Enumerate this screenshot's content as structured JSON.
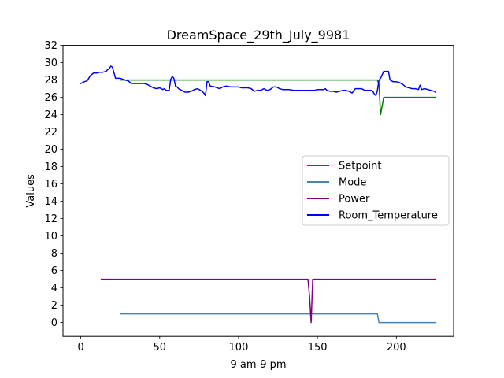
{
  "chart_data": {
    "type": "line",
    "title": "DreamSpace_29th_July_9981",
    "xlabel": "9 am-9 pm",
    "ylabel": "Values",
    "xlim": [
      -11.3,
      236.3
    ],
    "ylim": [
      -1.6,
      32
    ],
    "xticks": [
      0,
      50,
      100,
      150,
      200
    ],
    "yticks": [
      0,
      2,
      4,
      6,
      8,
      10,
      12,
      14,
      16,
      18,
      20,
      22,
      24,
      26,
      28,
      30,
      32
    ],
    "grid": false,
    "legend_position": "center-right",
    "series": [
      {
        "name": "Setpoint",
        "color": "#008000",
        "x": [
          25,
          30,
          60,
          100,
          150,
          188,
          189,
          190,
          191,
          192,
          200,
          225
        ],
        "y": [
          28,
          28,
          28,
          28,
          28,
          28,
          27.5,
          24,
          25,
          26,
          26,
          26
        ]
      },
      {
        "name": "Mode",
        "color": "#4682b4",
        "x": [
          25,
          100,
          188,
          189,
          200,
          225
        ],
        "y": [
          1,
          1,
          1,
          0,
          0,
          0
        ]
      },
      {
        "name": "Power",
        "color": "#800080",
        "x": [
          13,
          100,
          144,
          145,
          146,
          147,
          200,
          225
        ],
        "y": [
          5,
          5,
          5,
          3,
          0,
          5,
          5,
          5
        ]
      },
      {
        "name": "Room_Temperature",
        "color": "#0000ff",
        "x": [
          0,
          2,
          4,
          6,
          8,
          10,
          12,
          14,
          16,
          17,
          18,
          19,
          20,
          22,
          25,
          28,
          30,
          32,
          35,
          38,
          40,
          42,
          44,
          46,
          48,
          50,
          52,
          53,
          54,
          55,
          56,
          57,
          58,
          59,
          60,
          61,
          62,
          64,
          66,
          68,
          70,
          72,
          74,
          76,
          78,
          79,
          80,
          81,
          82,
          85,
          88,
          90,
          92,
          95,
          98,
          100,
          102,
          104,
          106,
          108,
          110,
          112,
          114,
          116,
          118,
          120,
          122,
          124,
          126,
          128,
          130,
          132,
          135,
          138,
          140,
          142,
          144,
          146,
          148,
          150,
          152,
          154,
          155,
          156,
          158,
          160,
          162,
          164,
          166,
          168,
          170,
          172,
          174,
          176,
          178,
          180,
          182,
          184,
          185,
          186,
          187,
          188,
          189,
          190,
          192,
          194,
          195,
          196,
          198,
          200,
          202,
          204,
          206,
          208,
          210,
          212,
          214,
          215,
          216,
          218,
          220,
          222,
          224,
          225
        ],
        "y": [
          27.6,
          27.8,
          27.9,
          28.5,
          28.8,
          28.8,
          28.9,
          28.9,
          29,
          29.2,
          29.3,
          29.6,
          29.5,
          28.2,
          28.2,
          28,
          27.9,
          27.6,
          27.6,
          27.6,
          27.6,
          27.5,
          27.3,
          27.1,
          27.0,
          27.1,
          26.9,
          27.0,
          26.8,
          26.8,
          26.8,
          28.1,
          28.4,
          28.2,
          27.3,
          27.2,
          27.0,
          26.8,
          26.6,
          26.6,
          26.7,
          26.9,
          27.0,
          26.8,
          26.5,
          26.2,
          27.8,
          27.8,
          27.3,
          27.2,
          27.0,
          27.2,
          27.3,
          27.2,
          27.2,
          27.2,
          27.1,
          27.1,
          27.1,
          27.0,
          26.7,
          26.8,
          26.8,
          27.0,
          26.8,
          26.9,
          27.2,
          27.2,
          27.0,
          26.9,
          26.9,
          26.9,
          26.8,
          26.8,
          26.8,
          26.8,
          26.8,
          26.8,
          26.8,
          26.9,
          26.9,
          26.9,
          27.0,
          26.8,
          26.7,
          26.7,
          26.6,
          26.7,
          26.8,
          26.8,
          26.7,
          26.5,
          27.0,
          27.0,
          27.0,
          26.8,
          26.8,
          26.8,
          26.7,
          26.4,
          26.2,
          26.8,
          28.0,
          28.2,
          29.0,
          29.0,
          29.0,
          28.0,
          27.8,
          27.8,
          27.7,
          27.5,
          27.2,
          27.1,
          27.0,
          27.0,
          26.9,
          27.4,
          26.9,
          27.0,
          26.9,
          26.8,
          26.7,
          26.6
        ]
      }
    ]
  }
}
